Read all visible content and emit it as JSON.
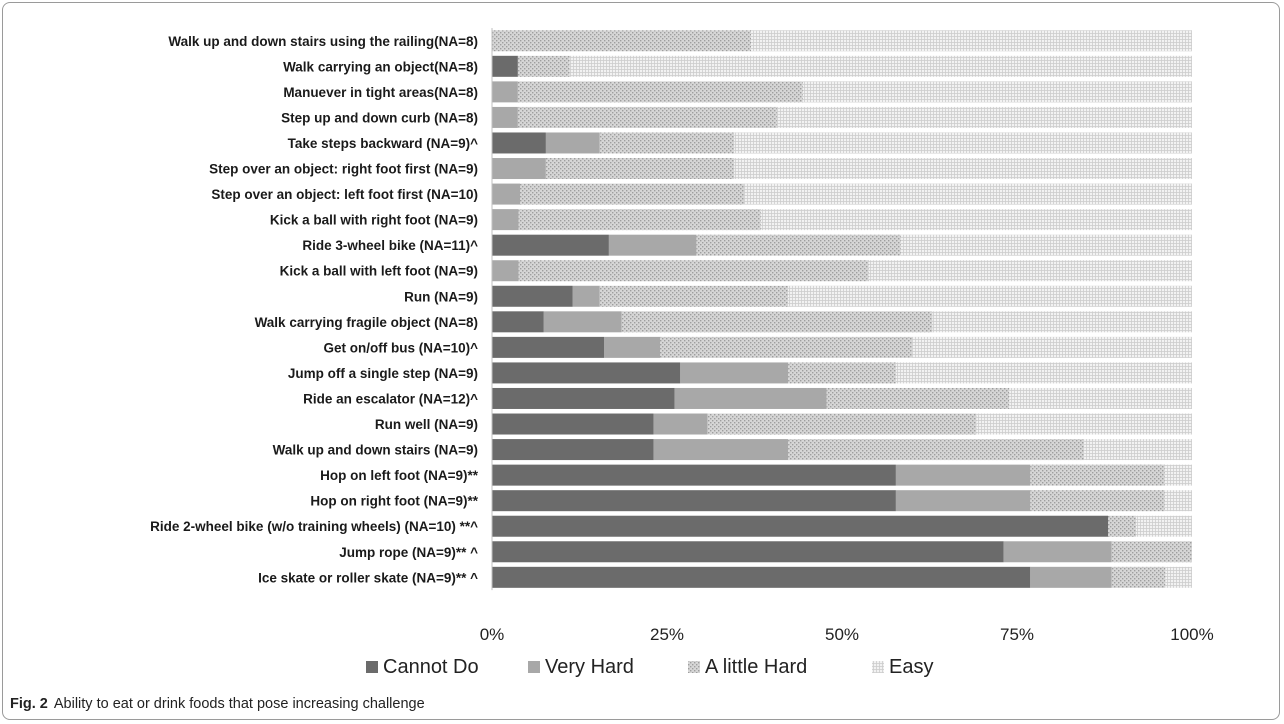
{
  "caption": {
    "label": "Fig. 2",
    "text": "Ability to eat or drink foods that pose increasing challenge"
  },
  "chart_data": {
    "type": "bar",
    "orientation": "horizontal",
    "stacked": true,
    "normalized": true,
    "xlim": [
      0,
      100
    ],
    "x_ticks": [
      "0%",
      "25%",
      "50%",
      "75%",
      "100%"
    ],
    "legend_position": "bottom",
    "categories": [
      "Walk up and down stairs using the railing(NA=8)",
      "Walk carrying an object(NA=8)",
      "Manuever in tight areas(NA=8)",
      "Step up and down curb (NA=8)",
      "Take steps backward (NA=9)^",
      "Step over an object: right foot first (NA=9)",
      "Step over an object: left foot first (NA=10)",
      "Kick a ball with right foot (NA=9)",
      "Ride 3-wheel bike (NA=11)^",
      "Kick a ball with left foot (NA=9)",
      "Run (NA=9)",
      "Walk carrying fragile object (NA=8)",
      "Get on/off bus (NA=10)^",
      "Jump off a single step (NA=9)",
      "Ride an escalator (NA=12)^",
      "Run well (NA=9)",
      "Walk up and down stairs (NA=9)",
      "Hop on left foot (NA=9)**",
      "Hop on right foot (NA=9)**",
      "Ride 2-wheel bike (w/o training wheels) (NA=10) **^",
      "Jump rope (NA=9)** ^",
      "Ice skate or roller skate (NA=9)** ^"
    ],
    "series": [
      {
        "name": "Cannot Do",
        "color": "#6b6b6b",
        "pattern": "solid-dark",
        "values": [
          0,
          3.7,
          0,
          0,
          7.7,
          0,
          0,
          0,
          16.7,
          0,
          11.5,
          7.4,
          16,
          26.9,
          26.1,
          23.1,
          23.1,
          57.7,
          57.7,
          88,
          73.1,
          76.9
        ]
      },
      {
        "name": "Very Hard",
        "color": "#a8a8a8",
        "pattern": "solid-light",
        "values": [
          0,
          0,
          3.7,
          3.7,
          7.7,
          7.7,
          4,
          3.8,
          12.5,
          3.8,
          3.9,
          11.1,
          8,
          15.4,
          21.7,
          7.7,
          19.2,
          19.2,
          19.2,
          0,
          15.4,
          11.6
        ]
      },
      {
        "name": "A little Hard",
        "color": "#cfcfcf",
        "pattern": "dots",
        "values": [
          37,
          7.4,
          40.7,
          37,
          19.2,
          26.9,
          32,
          34.6,
          29.2,
          50,
          26.9,
          44.4,
          36,
          15.4,
          26.1,
          38.4,
          42.3,
          19.2,
          19.2,
          4,
          11.5,
          7.7
        ]
      },
      {
        "name": "Easy",
        "color": "#e6e6e6",
        "pattern": "grid",
        "values": [
          63,
          88.9,
          55.6,
          59.3,
          65.4,
          65.4,
          64,
          61.6,
          41.6,
          46.2,
          57.7,
          37.1,
          40,
          42.3,
          26.1,
          30.8,
          15.4,
          3.9,
          3.9,
          8,
          0,
          3.8
        ]
      }
    ]
  }
}
